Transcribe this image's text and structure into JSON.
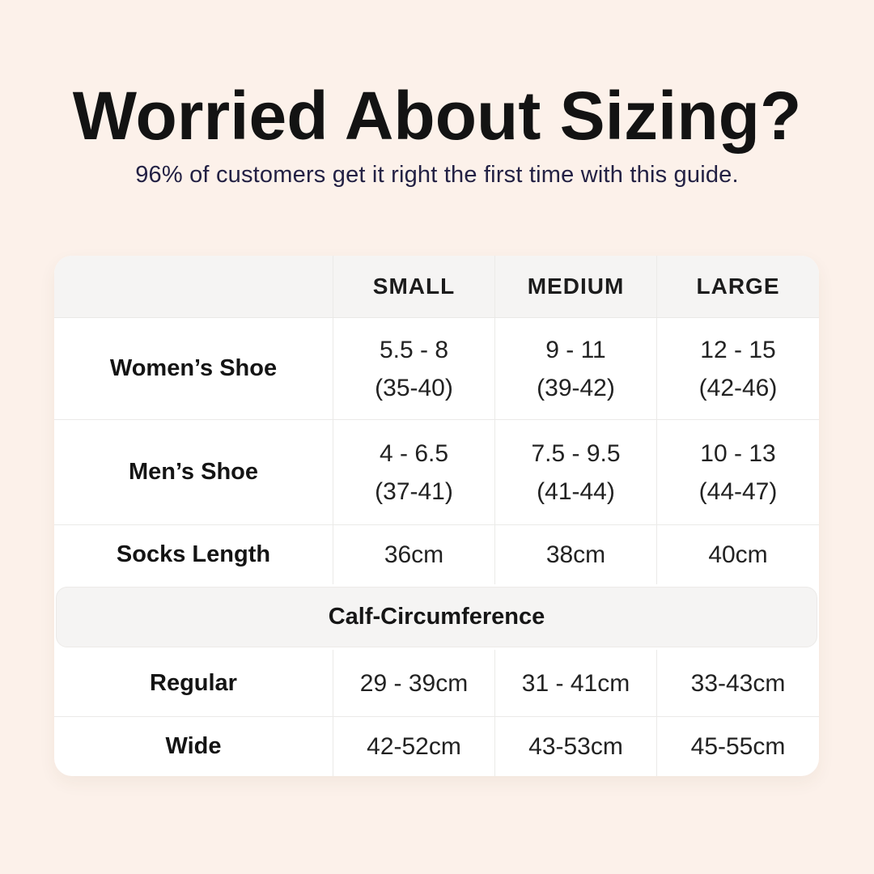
{
  "page": {
    "background_color": "#fcf1ea",
    "title_color": "#131313",
    "subtitle_color": "#232144",
    "table_header_color": "#f5f4f3"
  },
  "header": {
    "title": "Worried About Sizing?",
    "subtitle": "96% of customers get it right the first time with this guide."
  },
  "table": {
    "columns": [
      "",
      "SMALL",
      "MEDIUM",
      "LARGE"
    ],
    "rows": [
      {
        "label": "Women’s Shoe",
        "cells": [
          [
            "5.5 - 8",
            "(35-40)"
          ],
          [
            "9 - 11",
            "(39-42)"
          ],
          [
            "12 - 15",
            "(42-46)"
          ]
        ]
      },
      {
        "label": "Men’s Shoe",
        "cells": [
          [
            "4 - 6.5",
            "(37-41)"
          ],
          [
            "7.5 - 9.5",
            "(41-44)"
          ],
          [
            "10 - 13",
            "(44-47)"
          ]
        ]
      },
      {
        "label": "Socks Length",
        "cells": [
          [
            "36cm"
          ],
          [
            "38cm"
          ],
          [
            "40cm"
          ]
        ]
      }
    ],
    "section_header": "Calf-Circumference",
    "section_rows": [
      {
        "label": "Regular",
        "cells": [
          [
            "29 - 39cm"
          ],
          [
            "31 - 41cm"
          ],
          [
            "33-43cm"
          ]
        ]
      },
      {
        "label": "Wide",
        "cells": [
          [
            "42-52cm"
          ],
          [
            "43-53cm"
          ],
          [
            "45-55cm"
          ]
        ]
      }
    ]
  },
  "chart_data": {
    "type": "table",
    "title": "Worried About Sizing?",
    "subtitle": "96% of customers get it right the first time with this guide.",
    "columns": [
      "",
      "SMALL",
      "MEDIUM",
      "LARGE"
    ],
    "rows": [
      [
        "Women’s Shoe",
        "5.5 - 8 (35-40)",
        "9 - 11 (39-42)",
        "12 - 15 (42-46)"
      ],
      [
        "Men’s Shoe",
        "4 - 6.5 (37-41)",
        "7.5 - 9.5 (41-44)",
        "10 - 13 (44-47)"
      ],
      [
        "Socks Length",
        "36cm",
        "38cm",
        "40cm"
      ],
      [
        "Calf-Circumference",
        "",
        "",
        ""
      ],
      [
        "Regular",
        "29 - 39cm",
        "31 - 41cm",
        "33-43cm"
      ],
      [
        "Wide",
        "42-52cm",
        "43-53cm",
        "45-55cm"
      ]
    ]
  }
}
